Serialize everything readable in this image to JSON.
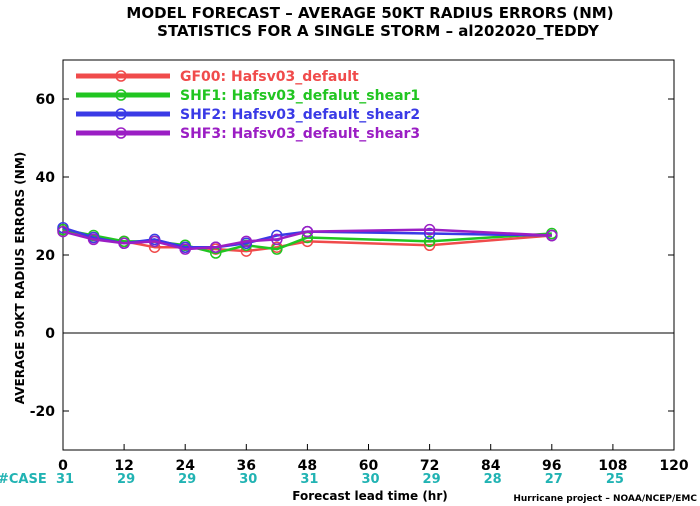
{
  "chart_data": {
    "type": "line",
    "title": "MODEL FORECAST – AVERAGE 50KT RADIUS ERRORS (NM)",
    "subtitle": "STATISTICS FOR A SINGLE STORM – al202020_TEDDY",
    "xlabel": "Forecast lead time (hr)",
    "ylabel": "AVERAGE 50KT RADIUS ERRORS (NM)",
    "xlim": [
      0,
      120
    ],
    "ylim": [
      -30,
      70
    ],
    "xticks": [
      0,
      12,
      24,
      36,
      48,
      60,
      72,
      84,
      96,
      108,
      120
    ],
    "yticks": [
      -20,
      0,
      20,
      40,
      60
    ],
    "zero_line": true,
    "grid": false,
    "legend_position": "top-left",
    "cases_label": "#CASE",
    "cases": [
      {
        "x": 0,
        "n": "31"
      },
      {
        "x": 12,
        "n": "29"
      },
      {
        "x": 24,
        "n": "29"
      },
      {
        "x": 36,
        "n": "30"
      },
      {
        "x": 48,
        "n": "31"
      },
      {
        "x": 60,
        "n": "30"
      },
      {
        "x": 72,
        "n": "29"
      },
      {
        "x": 84,
        "n": "28"
      },
      {
        "x": 96,
        "n": "27"
      },
      {
        "x": 108,
        "n": "25"
      }
    ],
    "credit": "Hurricane project – NOAA/NCEP/EMC",
    "series": [
      {
        "name": "GF00: Hafsv03_default",
        "color": "#f04b4b",
        "x": [
          0,
          6,
          12,
          18,
          24,
          30,
          36,
          42,
          48,
          72,
          96
        ],
        "y": [
          26.5,
          24.5,
          23.5,
          22,
          22,
          21.5,
          21,
          22,
          23.5,
          22.5,
          25
        ]
      },
      {
        "name": "SHF1: Hafsv03_defalut_shear1",
        "color": "#21c521",
        "x": [
          0,
          6,
          12,
          18,
          24,
          30,
          36,
          42,
          48,
          72,
          96
        ],
        "y": [
          26.5,
          25,
          23.5,
          23.5,
          22.5,
          20.5,
          22.5,
          21.5,
          24.5,
          23.5,
          25.5
        ]
      },
      {
        "name": "SHF2: Hafsv03_default_shear2",
        "color": "#3a3ae6",
        "x": [
          0,
          6,
          12,
          18,
          24,
          30,
          36,
          42,
          48,
          72,
          96
        ],
        "y": [
          27,
          24.5,
          23,
          24,
          22,
          22,
          23,
          25,
          26,
          25.5,
          25
        ]
      },
      {
        "name": "SHF3: Hafsv03_default_shear3",
        "color": "#9b1ec4",
        "x": [
          0,
          6,
          12,
          18,
          24,
          30,
          36,
          42,
          48,
          72,
          96
        ],
        "y": [
          26,
          24,
          23,
          23.5,
          21.5,
          22,
          23.5,
          24,
          26,
          26.5,
          25
        ]
      }
    ]
  }
}
